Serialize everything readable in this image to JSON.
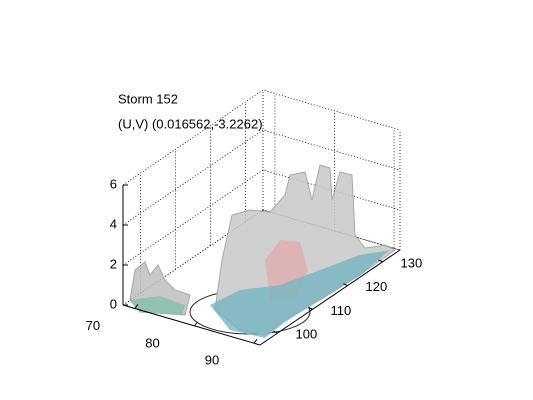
{
  "chart_data": {
    "type": "surface3d",
    "title": [
      "Storm 152",
      "(U,V) (0.016562,-3.2262)"
    ],
    "xlim": [
      68,
      91
    ],
    "xticks": [
      70,
      80,
      90
    ],
    "ylim": [
      95,
      135
    ],
    "yticks": [
      100,
      110,
      120,
      130
    ],
    "zlim": [
      0,
      6
    ],
    "zticks": [
      0,
      2,
      4,
      6
    ],
    "grid": true
  }
}
